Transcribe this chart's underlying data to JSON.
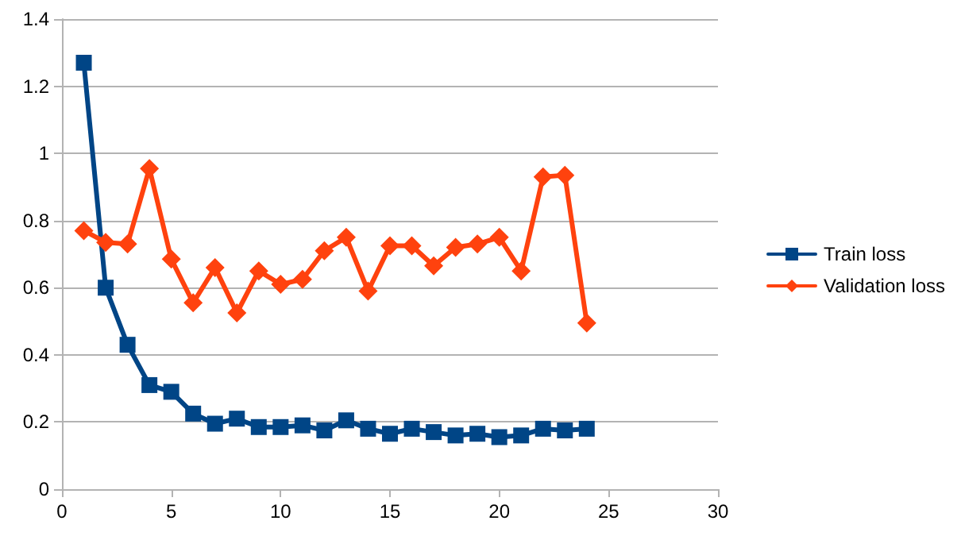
{
  "chart_data": {
    "type": "line",
    "x": [
      1,
      2,
      3,
      4,
      5,
      6,
      7,
      8,
      9,
      10,
      11,
      12,
      13,
      14,
      15,
      16,
      17,
      18,
      19,
      20,
      21,
      22,
      23,
      24
    ],
    "series": [
      {
        "name": "Train loss",
        "color": "#004586",
        "marker": "square",
        "values": [
          1.27,
          0.6,
          0.43,
          0.31,
          0.29,
          0.225,
          0.195,
          0.21,
          0.185,
          0.185,
          0.19,
          0.175,
          0.205,
          0.18,
          0.165,
          0.18,
          0.17,
          0.16,
          0.165,
          0.155,
          0.16,
          0.18,
          0.175,
          0.18
        ]
      },
      {
        "name": "Validation loss",
        "color": "#ff420e",
        "marker": "diamond",
        "values": [
          0.77,
          0.735,
          0.73,
          0.955,
          0.685,
          0.555,
          0.66,
          0.525,
          0.65,
          0.61,
          0.625,
          0.71,
          0.75,
          0.59,
          0.725,
          0.725,
          0.665,
          0.72,
          0.73,
          0.75,
          0.65,
          0.93,
          0.935,
          0.495
        ]
      }
    ],
    "xlim": [
      0,
      30
    ],
    "xticks": [
      0,
      5,
      10,
      15,
      20,
      25,
      30
    ],
    "ylim": [
      0,
      1.4
    ],
    "yticks": [
      0,
      0.2,
      0.4,
      0.6,
      0.8,
      1,
      1.2,
      1.4
    ],
    "grid": "y",
    "legend": "right",
    "line_style": "solid"
  }
}
